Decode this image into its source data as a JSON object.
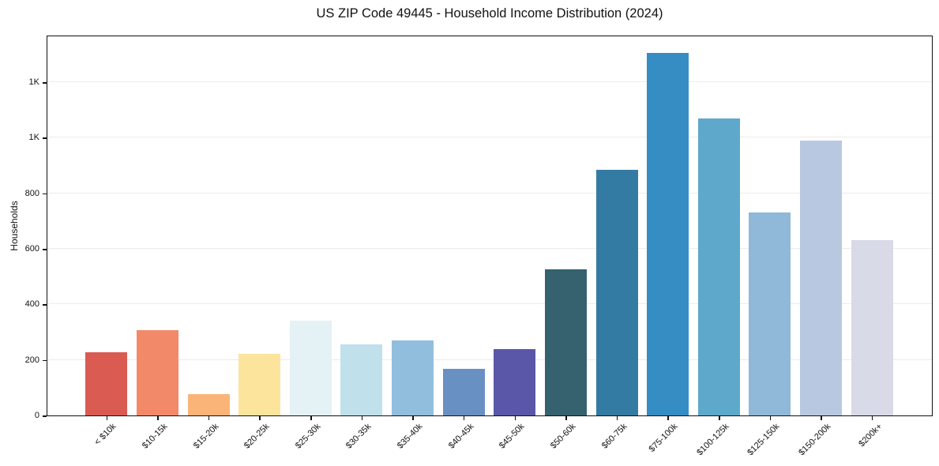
{
  "chart_data": {
    "type": "bar",
    "title": "US ZIP Code 49445 - Household Income Distribution (2024)",
    "xlabel": "",
    "ylabel": "Households",
    "categories": [
      "< $10k",
      "$10-15k",
      "$15-20k",
      "$20-25k",
      "$25-30k",
      "$30-35k",
      "$35-40k",
      "$40-45k",
      "$45-50k",
      "$50-60k",
      "$60-75k",
      "$75-100k",
      "$100-125k",
      "$125-150k",
      "$150-200k",
      "$200k+"
    ],
    "values": [
      228,
      308,
      77,
      222,
      341,
      256,
      270,
      168,
      239,
      526,
      886,
      1306,
      1070,
      731,
      990,
      632
    ],
    "bar_colors": [
      "#d95b52",
      "#f28a6a",
      "#fab478",
      "#fde49c",
      "#e4f1f5",
      "#c0e0ec",
      "#92bedd",
      "#6890c3",
      "#5a57a8",
      "#36616f",
      "#347ba3",
      "#358dc4",
      "#5ea8cc",
      "#90b8d9",
      "#b8c8e0",
      "#d8dae8"
    ],
    "ylim": [
      0,
      1371
    ],
    "yticks": [
      {
        "value": 0,
        "label": "0"
      },
      {
        "value": 200,
        "label": "200"
      },
      {
        "value": 400,
        "label": "400"
      },
      {
        "value": 600,
        "label": "600"
      },
      {
        "value": 800,
        "label": "800"
      },
      {
        "value": 1000,
        "label": "1K"
      },
      {
        "value": 1200,
        "label": "1K"
      }
    ],
    "grid": "horizontal",
    "legend": "none",
    "background_color": "#ffffff",
    "spine_color": "#111111",
    "grid_color": "#ececec"
  }
}
